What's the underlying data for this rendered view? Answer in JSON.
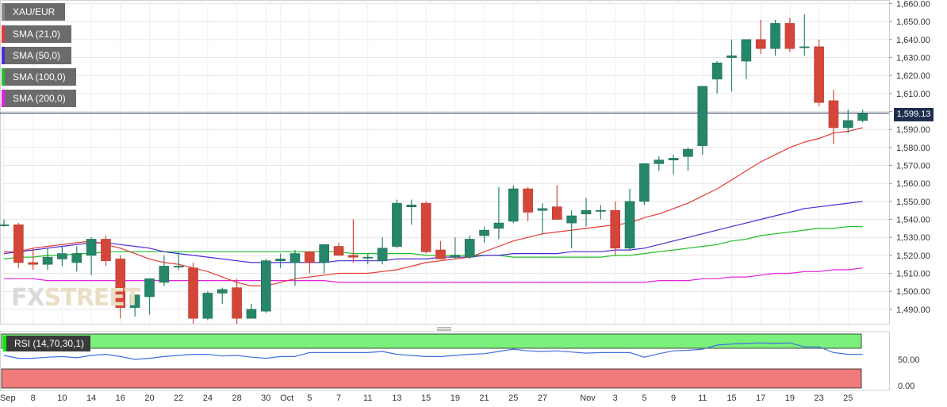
{
  "instrument": "XAU/EUR",
  "indicators": [
    {
      "label": "SMA (21,0)",
      "color": "#e53935"
    },
    {
      "label": "SMA (50,0)",
      "color": "#4b2bd6"
    },
    {
      "label": "SMA (100,0)",
      "color": "#22c02a"
    },
    {
      "label": "SMA (200,0)",
      "color": "#e320e3"
    }
  ],
  "last_price": "1,599.13",
  "watermark": {
    "fx": "FX",
    "street": "STREET"
  },
  "rsi": {
    "label": "RSI (14,70,30,1)",
    "ticks": [
      "50.00",
      "0.00"
    ],
    "values": [
      55,
      50,
      50,
      52,
      53,
      51,
      55,
      57,
      53,
      48,
      50,
      53,
      55,
      57,
      57,
      54,
      55,
      52,
      50,
      53,
      53,
      60,
      60,
      60,
      60,
      60,
      62,
      57,
      55,
      53,
      53,
      55,
      57,
      58,
      62,
      66,
      63,
      62,
      63,
      61,
      59,
      60,
      60,
      60,
      52,
      58,
      63,
      64,
      66,
      73,
      75,
      76,
      77,
      76,
      77,
      70,
      70,
      60,
      57,
      57
    ]
  },
  "colors": {
    "up": "#26866a",
    "down": "#d5463a",
    "grid": "#e6e6e6",
    "last_line": "#1f2e4f",
    "rsi_overbought": "#7bf07b",
    "rsi_oversold": "#f07b7b",
    "rsi_line": "#3f6fe0"
  },
  "chart_data": {
    "type": "candlestick",
    "title": "XAU/EUR",
    "ylim": [
      1482,
      1662
    ],
    "y_ticks": [
      "1,490.00",
      "1,500.00",
      "1,510.00",
      "1,520.00",
      "1,530.00",
      "1,540.00",
      "1,550.00",
      "1,560.00",
      "1,570.00",
      "1,580.00",
      "1,590.00",
      "1,600.00",
      "1,610.00",
      "1,620.00",
      "1,630.00",
      "1,640.00",
      "1,650.00",
      "1,660.00"
    ],
    "x_labels": [
      {
        "label": "Sep",
        "i": 0
      },
      {
        "label": "8",
        "i": 2
      },
      {
        "label": "10",
        "i": 4
      },
      {
        "label": "14",
        "i": 6
      },
      {
        "label": "16",
        "i": 8
      },
      {
        "label": "20",
        "i": 10
      },
      {
        "label": "22",
        "i": 12
      },
      {
        "label": "24",
        "i": 14
      },
      {
        "label": "28",
        "i": 16
      },
      {
        "label": "30",
        "i": 18
      },
      {
        "label": "Oct",
        "i": 19
      },
      {
        "label": "5",
        "i": 21
      },
      {
        "label": "7",
        "i": 23
      },
      {
        "label": "11",
        "i": 25
      },
      {
        "label": "13",
        "i": 27
      },
      {
        "label": "15",
        "i": 29
      },
      {
        "label": "19",
        "i": 31
      },
      {
        "label": "21",
        "i": 33
      },
      {
        "label": "25",
        "i": 35
      },
      {
        "label": "27",
        "i": 37
      },
      {
        "label": "Nov",
        "i": 40
      },
      {
        "label": "3",
        "i": 42
      },
      {
        "label": "5",
        "i": 44
      },
      {
        "label": "9",
        "i": 46
      },
      {
        "label": "11",
        "i": 48
      },
      {
        "label": "15",
        "i": 50
      },
      {
        "label": "17",
        "i": 52
      },
      {
        "label": "19",
        "i": 54
      },
      {
        "label": "23",
        "i": 56
      },
      {
        "label": "25",
        "i": 58
      }
    ],
    "candles": [
      {
        "o": 1537,
        "h": 1540,
        "l": 1536,
        "c": 1537
      },
      {
        "o": 1537,
        "h": 1538,
        "l": 1513,
        "c": 1516
      },
      {
        "o": 1516,
        "h": 1524,
        "l": 1512,
        "c": 1515
      },
      {
        "o": 1515,
        "h": 1524,
        "l": 1512,
        "c": 1519
      },
      {
        "o": 1518,
        "h": 1525,
        "l": 1514,
        "c": 1521
      },
      {
        "o": 1516,
        "h": 1525,
        "l": 1511,
        "c": 1521
      },
      {
        "o": 1520,
        "h": 1530,
        "l": 1509,
        "c": 1529
      },
      {
        "o": 1529,
        "h": 1531,
        "l": 1514,
        "c": 1517
      },
      {
        "o": 1518,
        "h": 1520,
        "l": 1485,
        "c": 1491
      },
      {
        "o": 1491,
        "h": 1498,
        "l": 1486,
        "c": 1498
      },
      {
        "o": 1497,
        "h": 1507,
        "l": 1487,
        "c": 1507
      },
      {
        "o": 1505,
        "h": 1520,
        "l": 1503,
        "c": 1514
      },
      {
        "o": 1514,
        "h": 1522,
        "l": 1512,
        "c": 1514
      },
      {
        "o": 1513,
        "h": 1516,
        "l": 1482,
        "c": 1485
      },
      {
        "o": 1485,
        "h": 1500,
        "l": 1484,
        "c": 1499
      },
      {
        "o": 1499,
        "h": 1502,
        "l": 1493,
        "c": 1501
      },
      {
        "o": 1502,
        "h": 1507,
        "l": 1482,
        "c": 1485
      },
      {
        "o": 1485,
        "h": 1493,
        "l": 1485,
        "c": 1490
      },
      {
        "o": 1489,
        "h": 1518,
        "l": 1488,
        "c": 1517
      },
      {
        "o": 1517,
        "h": 1521,
        "l": 1513,
        "c": 1518
      },
      {
        "o": 1516,
        "h": 1523,
        "l": 1503,
        "c": 1521
      },
      {
        "o": 1522,
        "h": 1522,
        "l": 1510,
        "c": 1516
      },
      {
        "o": 1516,
        "h": 1526,
        "l": 1510,
        "c": 1526
      },
      {
        "o": 1525,
        "h": 1527,
        "l": 1520,
        "c": 1520
      },
      {
        "o": 1520,
        "h": 1540,
        "l": 1516,
        "c": 1519
      },
      {
        "o": 1519,
        "h": 1521,
        "l": 1515,
        "c": 1519
      },
      {
        "o": 1517,
        "h": 1530,
        "l": 1515,
        "c": 1524
      },
      {
        "o": 1525,
        "h": 1551,
        "l": 1524,
        "c": 1549
      },
      {
        "o": 1547,
        "h": 1551,
        "l": 1537,
        "c": 1548
      },
      {
        "o": 1549,
        "h": 1550,
        "l": 1521,
        "c": 1522
      },
      {
        "o": 1523,
        "h": 1528,
        "l": 1518,
        "c": 1518
      },
      {
        "o": 1519,
        "h": 1530,
        "l": 1518,
        "c": 1520
      },
      {
        "o": 1519,
        "h": 1531,
        "l": 1518,
        "c": 1529
      },
      {
        "o": 1531,
        "h": 1536,
        "l": 1527,
        "c": 1534
      },
      {
        "o": 1535,
        "h": 1558,
        "l": 1529,
        "c": 1538
      },
      {
        "o": 1539,
        "h": 1559,
        "l": 1538,
        "c": 1557
      },
      {
        "o": 1557,
        "h": 1558,
        "l": 1539,
        "c": 1544
      },
      {
        "o": 1545,
        "h": 1549,
        "l": 1532,
        "c": 1546
      },
      {
        "o": 1547,
        "h": 1559,
        "l": 1540,
        "c": 1540
      },
      {
        "o": 1538,
        "h": 1545,
        "l": 1524,
        "c": 1542
      },
      {
        "o": 1543,
        "h": 1552,
        "l": 1536,
        "c": 1545
      },
      {
        "o": 1545,
        "h": 1548,
        "l": 1540,
        "c": 1545
      },
      {
        "o": 1545,
        "h": 1550,
        "l": 1520,
        "c": 1524
      },
      {
        "o": 1524,
        "h": 1557,
        "l": 1523,
        "c": 1550
      },
      {
        "o": 1550,
        "h": 1571,
        "l": 1548,
        "c": 1571
      },
      {
        "o": 1571,
        "h": 1575,
        "l": 1567,
        "c": 1573
      },
      {
        "o": 1573,
        "h": 1576,
        "l": 1565,
        "c": 1574
      },
      {
        "o": 1575,
        "h": 1580,
        "l": 1567,
        "c": 1579
      },
      {
        "o": 1581,
        "h": 1614,
        "l": 1576,
        "c": 1614
      },
      {
        "o": 1618,
        "h": 1628,
        "l": 1610,
        "c": 1627
      },
      {
        "o": 1630,
        "h": 1640,
        "l": 1611,
        "c": 1631
      },
      {
        "o": 1628,
        "h": 1640,
        "l": 1618,
        "c": 1640
      },
      {
        "o": 1640,
        "h": 1651,
        "l": 1632,
        "c": 1635
      },
      {
        "o": 1635,
        "h": 1651,
        "l": 1631,
        "c": 1649
      },
      {
        "o": 1649,
        "h": 1652,
        "l": 1633,
        "c": 1635
      },
      {
        "o": 1636,
        "h": 1654,
        "l": 1631,
        "c": 1636
      },
      {
        "o": 1636,
        "h": 1640,
        "l": 1603,
        "c": 1605
      },
      {
        "o": 1606,
        "h": 1612,
        "l": 1582,
        "c": 1591
      },
      {
        "o": 1591,
        "h": 1601,
        "l": 1588,
        "c": 1595
      },
      {
        "o": 1595,
        "h": 1601,
        "l": 1594,
        "c": 1599
      }
    ],
    "sma21": [
      1522,
      1522,
      1524,
      1525,
      1526,
      1527,
      1528,
      1526,
      1524,
      1521,
      1518,
      1516,
      1515,
      1513,
      1511,
      1508,
      1505,
      1503,
      1503,
      1505,
      1507,
      1508,
      1509,
      1510,
      1510,
      1510,
      1511,
      1512,
      1514,
      1516,
      1517,
      1518,
      1519,
      1522,
      1525,
      1528,
      1530,
      1532,
      1533,
      1534,
      1535,
      1536,
      1537,
      1538,
      1541,
      1543,
      1546,
      1549,
      1553,
      1557,
      1562,
      1567,
      1572,
      1576,
      1580,
      1583,
      1585,
      1588,
      1589,
      1591
    ],
    "sma50": [
      1521,
      1522,
      1523,
      1524,
      1525,
      1526,
      1527,
      1527,
      1526,
      1525,
      1524,
      1522,
      1521,
      1520,
      1519,
      1518,
      1517,
      1516,
      1516,
      1516,
      1516,
      1516,
      1516,
      1517,
      1517,
      1517,
      1517,
      1518,
      1518,
      1518,
      1519,
      1519,
      1519,
      1520,
      1520,
      1521,
      1521,
      1521,
      1521,
      1522,
      1522,
      1522,
      1523,
      1523,
      1524,
      1526,
      1528,
      1530,
      1532,
      1534,
      1536,
      1538,
      1540,
      1542,
      1544,
      1546,
      1547,
      1548,
      1549,
      1550
    ],
    "sma100": [
      1518,
      1519,
      1519,
      1520,
      1520,
      1521,
      1521,
      1522,
      1522,
      1522,
      1522,
      1522,
      1522,
      1522,
      1522,
      1522,
      1522,
      1522,
      1522,
      1522,
      1522,
      1522,
      1522,
      1522,
      1521,
      1521,
      1521,
      1521,
      1521,
      1520,
      1520,
      1520,
      1520,
      1520,
      1520,
      1519,
      1519,
      1519,
      1519,
      1519,
      1519,
      1519,
      1520,
      1520,
      1521,
      1522,
      1523,
      1524,
      1525,
      1526,
      1528,
      1529,
      1531,
      1532,
      1533,
      1534,
      1535,
      1535,
      1536,
      1536
    ],
    "sma200": [
      1507,
      1507,
      1507,
      1506,
      1506,
      1506,
      1506,
      1506,
      1506,
      1506,
      1506,
      1506,
      1506,
      1506,
      1506,
      1506,
      1506,
      1506,
      1506,
      1506,
      1506,
      1506,
      1506,
      1505,
      1505,
      1505,
      1505,
      1505,
      1505,
      1505,
      1505,
      1505,
      1505,
      1505,
      1505,
      1505,
      1505,
      1505,
      1505,
      1505,
      1505,
      1505,
      1505,
      1505,
      1505,
      1506,
      1506,
      1506,
      1507,
      1507,
      1508,
      1508,
      1509,
      1510,
      1510,
      1511,
      1511,
      1512,
      1512,
      1513
    ]
  }
}
